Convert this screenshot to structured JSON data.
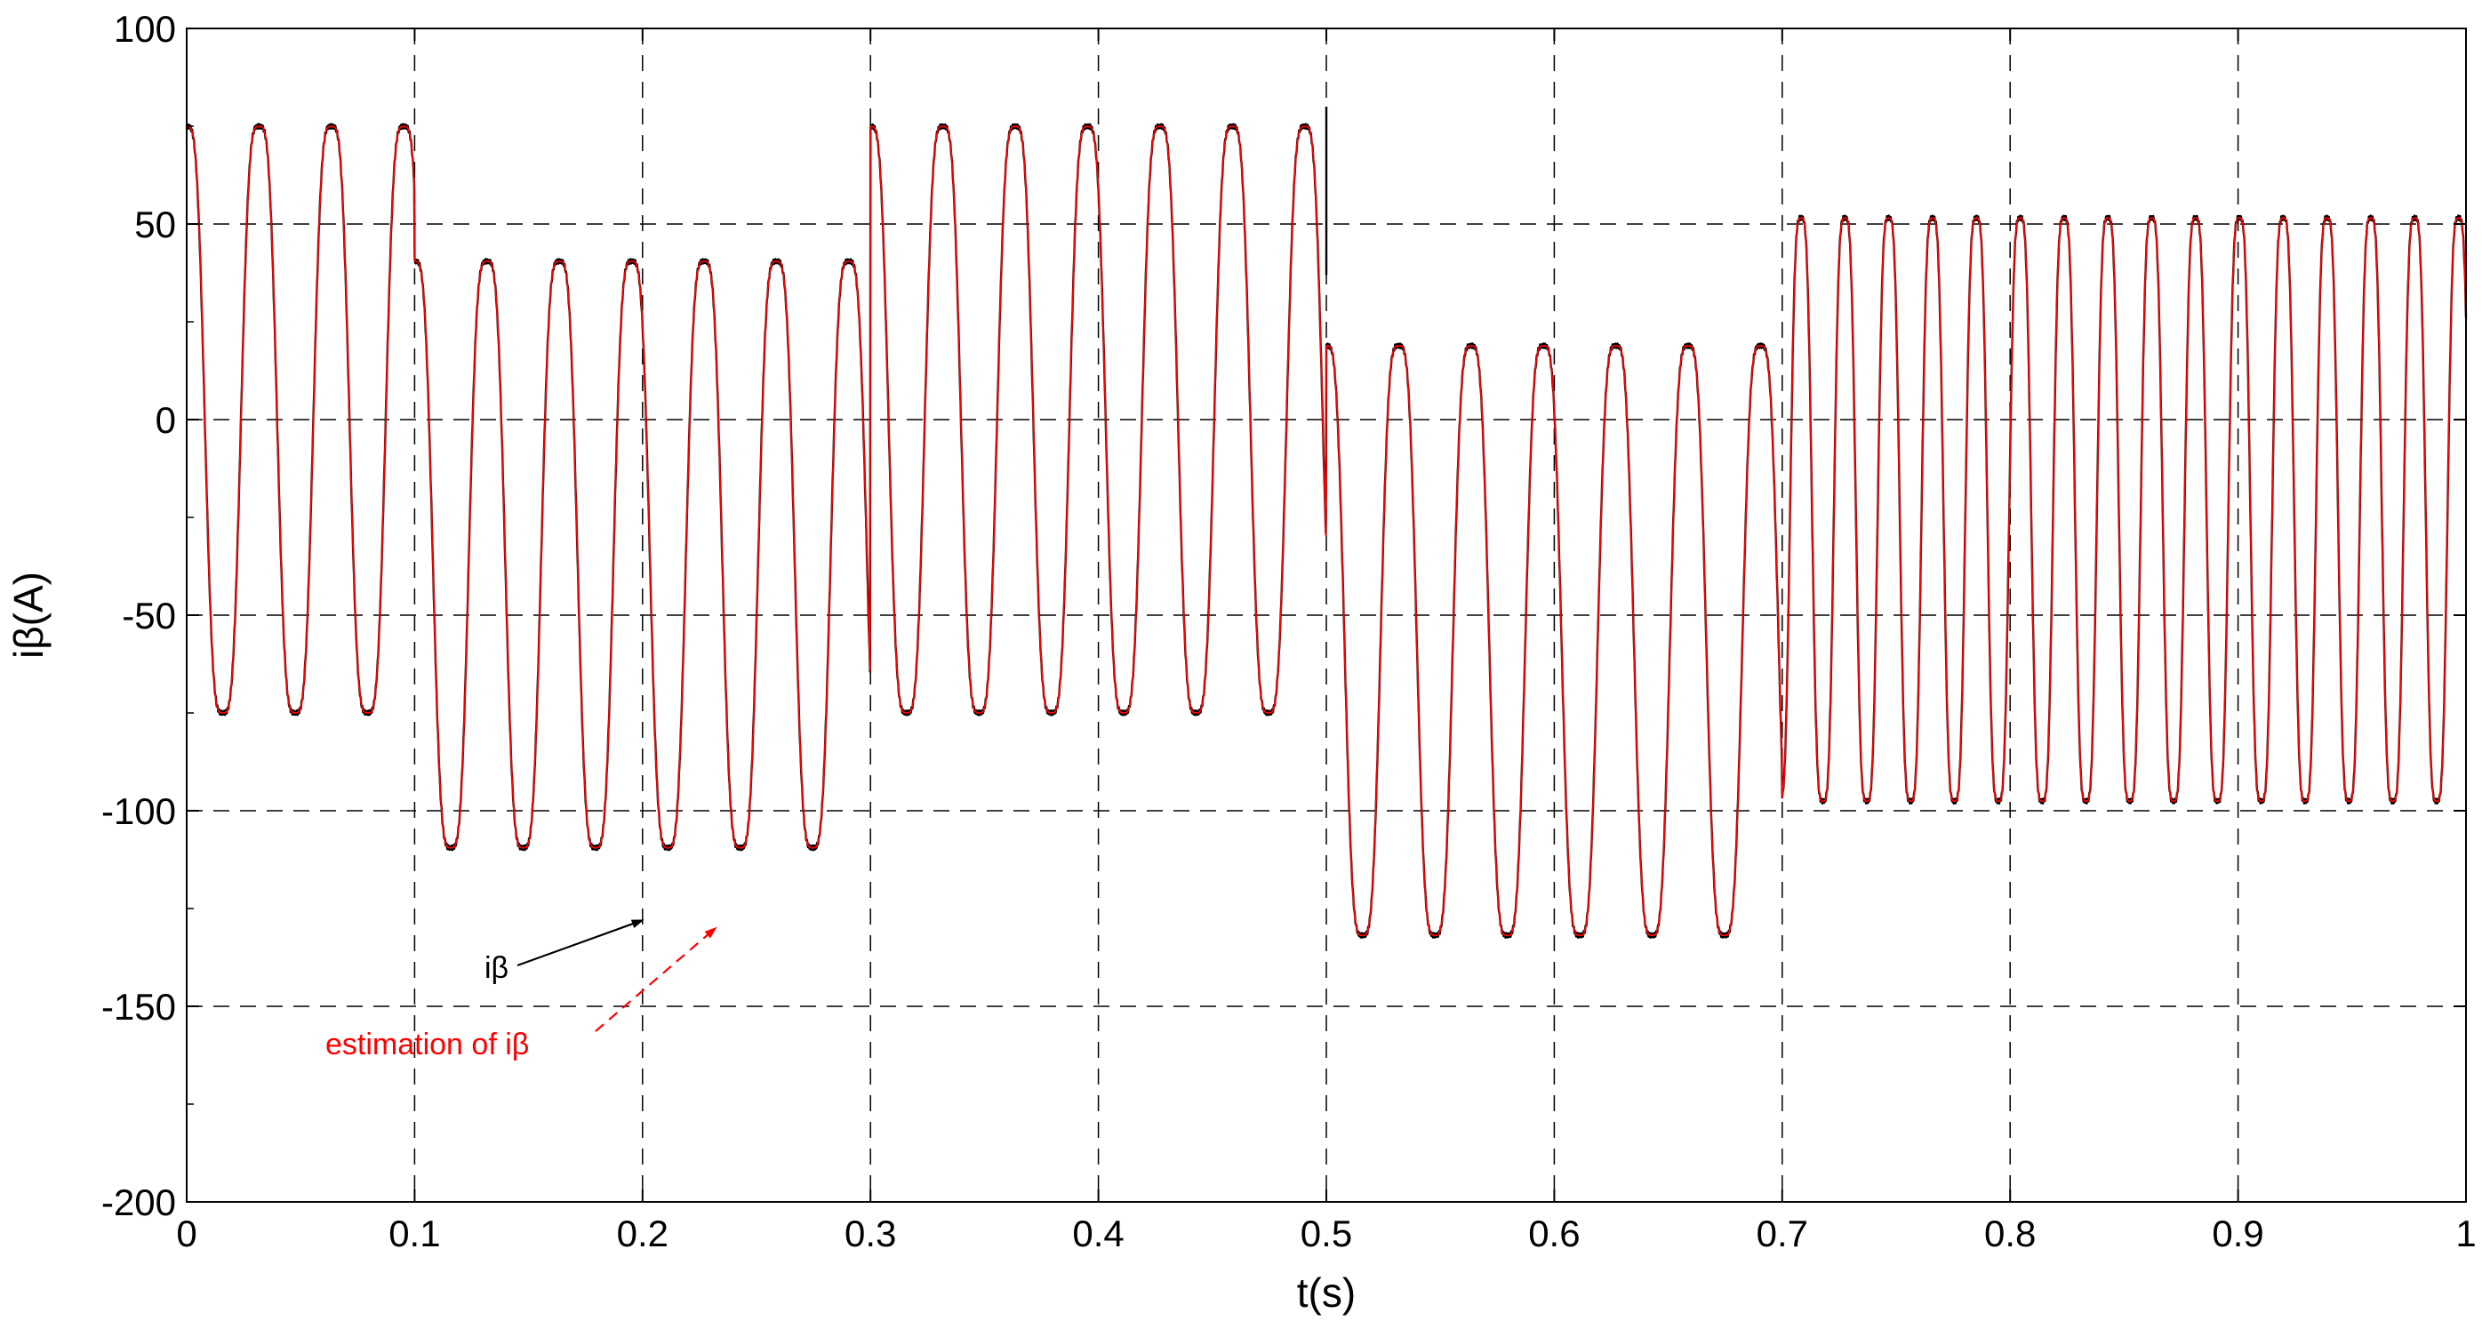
{
  "chart_data": {
    "type": "line",
    "xlabel": "t(s)",
    "ylabel": "iβ(A)",
    "xlim": [
      0,
      1
    ],
    "ylim": [
      -200,
      100
    ],
    "xticks": [
      "0",
      "0.1",
      "0.2",
      "0.3",
      "0.4",
      "0.5",
      "0.6",
      "0.7",
      "0.8",
      "0.9",
      "1"
    ],
    "yticks": [
      "100",
      "50",
      "0",
      "-50",
      "-100",
      "-150",
      "-200"
    ],
    "grid": true,
    "segments": [
      {
        "t_start": 0.0,
        "t_end": 0.1,
        "frequency_hz": 31.5,
        "offset": 0,
        "amplitude": 93.5,
        "phase_cycles": 0.25
      },
      {
        "t_start": 0.1,
        "t_end": 0.3,
        "frequency_hz": 31.5,
        "offset": -34.5,
        "amplitude": 93.5,
        "phase_cycles": 0.25
      },
      {
        "t_start": 0.3,
        "t_end": 0.5,
        "frequency_hz": 31.5,
        "offset": 0,
        "amplitude": 93.5,
        "phase_cycles": 0.25
      },
      {
        "t_start": 0.5,
        "t_end": 0.7,
        "frequency_hz": 31.5,
        "offset": -56.5,
        "amplitude": 94,
        "phase_cycles": 0.25
      },
      {
        "t_start": 0.7,
        "t_end": 1.0,
        "frequency_hz": 52,
        "offset": -23,
        "amplitude": 93,
        "phase_cycles": 0.82
      }
    ],
    "series": [
      {
        "name": "iβ",
        "color": "#000000",
        "style": "solid"
      },
      {
        "name": "estimation of iβ",
        "color": "#ff0000",
        "style": "solid"
      }
    ],
    "annotations": [
      {
        "text": "iβ",
        "color": "#000000",
        "points_to": {
          "x": 0.2,
          "y": -128
        }
      },
      {
        "text": "estimation of iβ",
        "color": "#ff0000",
        "points_to": {
          "x": 0.232,
          "y": -130
        }
      }
    ]
  }
}
